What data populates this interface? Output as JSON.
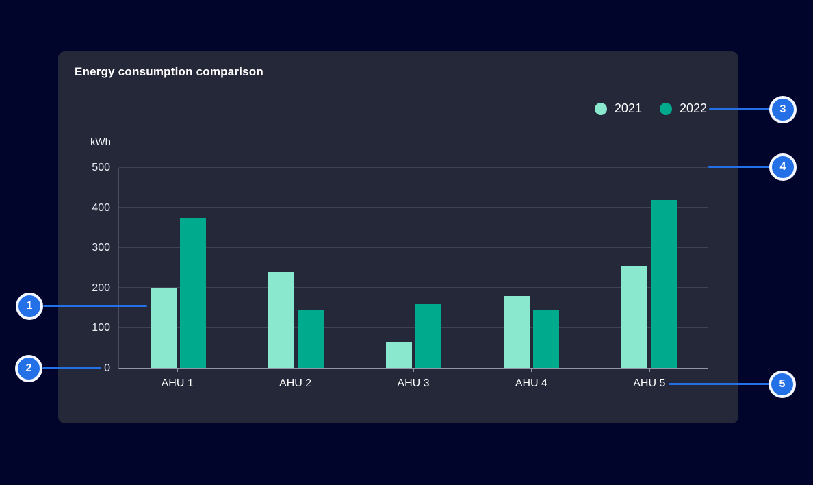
{
  "colors": {
    "page_bg": "#02052b",
    "card_bg": "#242839",
    "grid_line": "#3e4257",
    "axis_line": "#4a4e64",
    "baseline": "#9094a8",
    "accent": "#2470e6",
    "badge_ring": "#f4f7ff",
    "series_2021": "#8ae8cf",
    "series_2022": "#00ab8d"
  },
  "card": {
    "title": "Energy consumption comparison"
  },
  "chart_data": {
    "type": "bar",
    "title": "Energy consumption comparison",
    "xlabel": "",
    "ylabel": "kWh",
    "ylim": [
      0,
      500
    ],
    "yticks": [
      0,
      100,
      200,
      300,
      400,
      500
    ],
    "grid": true,
    "legend_position": "top-right",
    "categories": [
      "AHU 1",
      "AHU 2",
      "AHU 3",
      "AHU 4",
      "AHU 5"
    ],
    "series": [
      {
        "name": "2021",
        "color": "#8ae8cf",
        "values": [
          200,
          240,
          65,
          180,
          255
        ]
      },
      {
        "name": "2022",
        "color": "#00ab8d",
        "values": [
          375,
          145,
          160,
          145,
          420
        ]
      }
    ]
  },
  "annotations": {
    "badges": [
      {
        "label": "1"
      },
      {
        "label": "2"
      },
      {
        "label": "3"
      },
      {
        "label": "4"
      },
      {
        "label": "5"
      }
    ]
  }
}
